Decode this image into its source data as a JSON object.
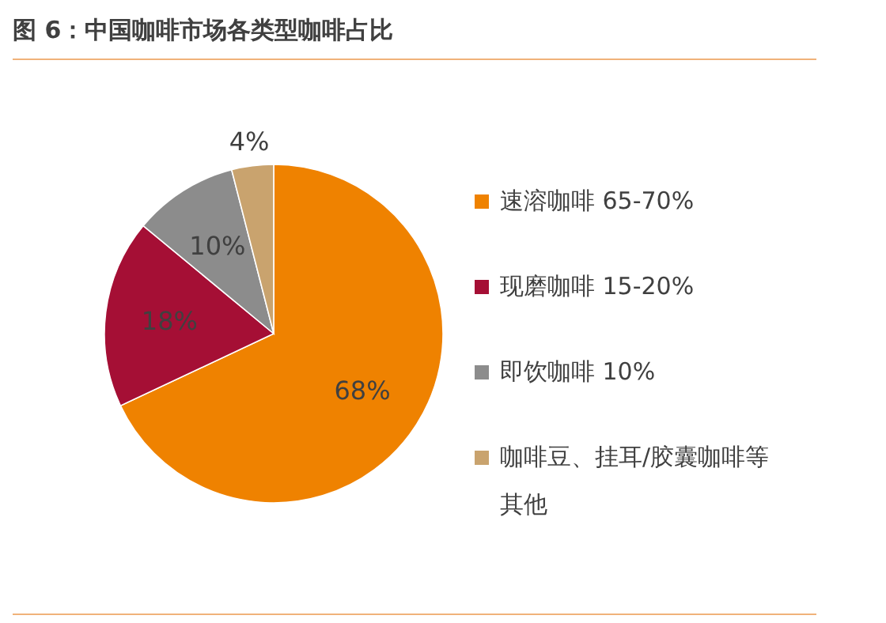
{
  "chart_data": {
    "type": "pie",
    "title": "图 6：中国咖啡市场各类型咖啡占比",
    "categories": [
      "速溶咖啡 65-70%",
      "现磨咖啡 15-20%",
      "即饮咖啡 10%",
      "咖啡豆、挂耳/胶囊咖啡等其他"
    ],
    "values": [
      68,
      18,
      10,
      4
    ],
    "colors": [
      "#ef8200",
      "#a50f35",
      "#8c8c8c",
      "#c9a36e"
    ],
    "value_labels": [
      "68%",
      "18%",
      "10%",
      "4%"
    ],
    "legend": "right"
  }
}
